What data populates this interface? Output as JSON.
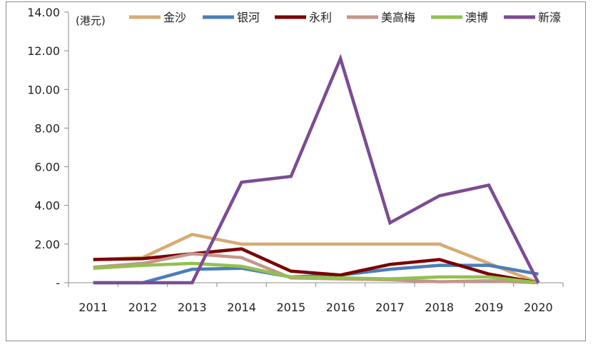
{
  "chart_data": {
    "type": "line",
    "unit_label": "(港元)",
    "categories": [
      "2011",
      "2012",
      "2013",
      "2014",
      "2015",
      "2016",
      "2017",
      "2018",
      "2019",
      "2020"
    ],
    "y_ticks": [
      "-",
      "2.00",
      "4.00",
      "6.00",
      "8.00",
      "10.00",
      "12.00",
      "14.00"
    ],
    "ylim": [
      0,
      14
    ],
    "legend_position": "top",
    "grid": false,
    "series": [
      {
        "name": "金沙",
        "color": "#D7AB73",
        "values": [
          1.2,
          1.3,
          2.5,
          2.0,
          2.0,
          2.0,
          2.0,
          2.0,
          1.0,
          0.0
        ]
      },
      {
        "name": "银河",
        "color": "#4A7EBB",
        "values": [
          0.0,
          0.0,
          0.7,
          0.75,
          0.3,
          0.4,
          0.7,
          0.9,
          0.9,
          0.45
        ]
      },
      {
        "name": "永利",
        "color": "#7B0000",
        "values": [
          1.2,
          1.25,
          1.5,
          1.75,
          0.6,
          0.4,
          0.95,
          1.2,
          0.45,
          0.0
        ]
      },
      {
        "name": "美高梅",
        "color": "#C4968A",
        "values": [
          0.8,
          1.0,
          1.5,
          1.3,
          0.25,
          0.2,
          0.15,
          0.05,
          0.1,
          0.0
        ]
      },
      {
        "name": "澳博",
        "color": "#92C150",
        "values": [
          0.75,
          0.9,
          1.0,
          0.85,
          0.3,
          0.25,
          0.2,
          0.3,
          0.3,
          0.0
        ]
      },
      {
        "name": "新濠",
        "color": "#7B4C94",
        "values": [
          0.0,
          0.0,
          0.0,
          5.2,
          5.5,
          11.6,
          3.1,
          4.5,
          5.05,
          0.0
        ]
      }
    ]
  }
}
